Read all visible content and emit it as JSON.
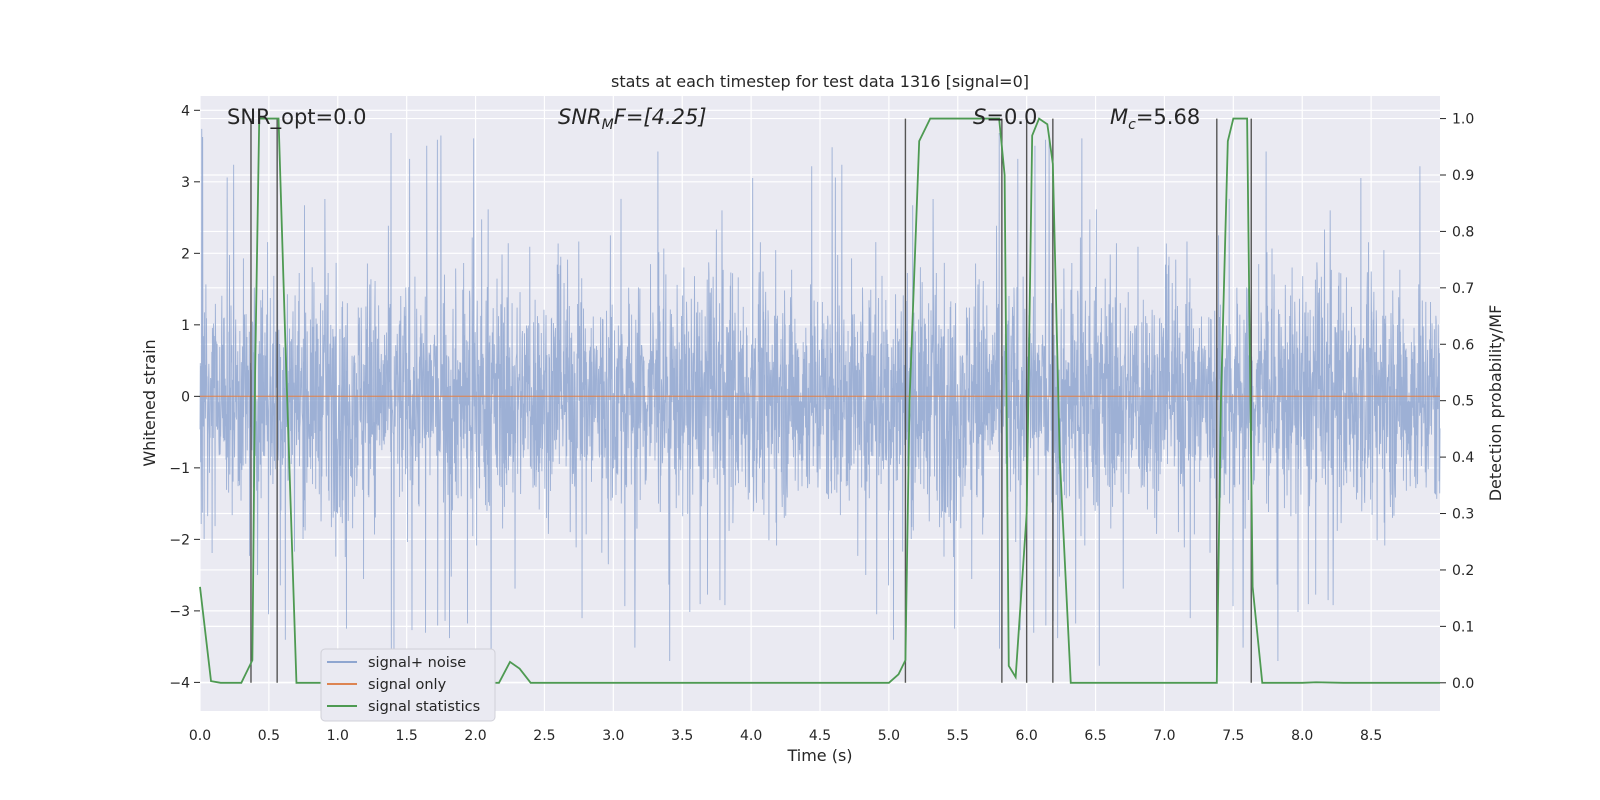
{
  "chart_data": {
    "type": "line",
    "title": "stats at each timestep for test data 1316 [signal=0]",
    "xlabel": "Time (s)",
    "ylabel_left": "Whitened strain",
    "ylabel_right": "Detection probability/MF",
    "xlim": [
      0,
      9
    ],
    "ylim_left": [
      -4.4,
      4.2
    ],
    "ylim_right": [
      -0.05,
      1.04
    ],
    "x_ticks": [
      "0.0",
      "0.5",
      "1.0",
      "1.5",
      "2.0",
      "2.5",
      "3.0",
      "3.5",
      "4.0",
      "4.5",
      "5.0",
      "5.5",
      "6.0",
      "6.5",
      "7.0",
      "7.5",
      "8.0",
      "8.5"
    ],
    "y_ticks_left": [
      "−4",
      "−3",
      "−2",
      "−1",
      "0",
      "1",
      "2",
      "3",
      "4"
    ],
    "y_ticks_right": [
      "0.0",
      "0.1",
      "0.2",
      "0.3",
      "0.4",
      "0.5",
      "0.6",
      "0.7",
      "0.8",
      "0.9",
      "1.0"
    ],
    "grid": true,
    "legend_location": "lower-left",
    "annotations": {
      "snr_opt": "SNR_opt=0.0",
      "snr_mf_main": "SNR",
      "snr_mf_sub": "M",
      "snr_mf_rest": "F=[4.25]",
      "s_main": "S",
      "s_rest": "=0.0",
      "mc_main": "M",
      "mc_sub": "c",
      "mc_rest": "=5.68"
    },
    "series": [
      {
        "name": "signal+ noise",
        "color": "#8fa6d0",
        "envelope_core": [
          -1.7,
          1.6
        ],
        "peak_range": [
          -3.9,
          3.8
        ]
      },
      {
        "name": "signal only",
        "color": "#dd8452",
        "values_constant": 0.0
      },
      {
        "name": "signal statistics",
        "color": "#4e9a52",
        "x": [
          0.0,
          0.08,
          0.15,
          0.3,
          0.38,
          0.4,
          0.43,
          0.57,
          0.62,
          0.7,
          1.0,
          2.0,
          2.17,
          2.25,
          2.32,
          2.4,
          3.0,
          4.0,
          5.0,
          5.07,
          5.12,
          5.15,
          5.22,
          5.3,
          5.6,
          5.8,
          5.84,
          5.87,
          5.92,
          6.0,
          6.04,
          6.09,
          6.15,
          6.19,
          6.24,
          6.32,
          6.5,
          7.0,
          7.38,
          7.41,
          7.46,
          7.5,
          7.6,
          7.64,
          7.71,
          7.8,
          8.0,
          8.1,
          8.3,
          9.0
        ],
        "y": [
          0.17,
          0.003,
          0.0,
          0.0,
          0.04,
          0.55,
          1.0,
          1.0,
          0.6,
          0.0,
          0.0,
          0.0,
          0.0,
          0.037,
          0.025,
          0.0,
          0.0,
          0.0,
          0.0,
          0.015,
          0.04,
          0.5,
          0.96,
          1.0,
          1.0,
          1.0,
          0.9,
          0.03,
          0.01,
          0.3,
          0.97,
          1.0,
          0.99,
          0.92,
          0.4,
          0.0,
          0.0,
          0.0,
          0.0,
          0.5,
          0.96,
          1.0,
          1.0,
          0.17,
          0.0,
          0.0,
          0.0,
          0.001,
          0.0,
          0.0
        ]
      }
    ],
    "vertical_markers": [
      0.37,
      0.56,
      5.12,
      5.82,
      6.0,
      6.19,
      7.38,
      7.63
    ]
  }
}
